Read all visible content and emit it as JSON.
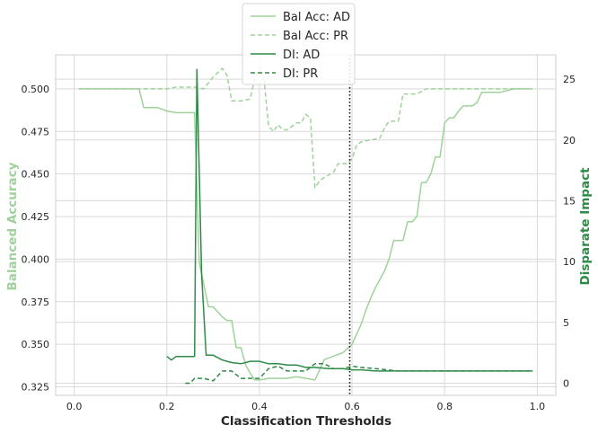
{
  "chart_data": {
    "type": "line",
    "xlabel": "Classification Thresholds",
    "ylabel_left": "Balanced Accuracy",
    "ylabel_right": "Disparate Impact",
    "xlim": [
      -0.04,
      1.04
    ],
    "ylim_left": [
      0.32,
      0.52
    ],
    "ylim_right": [
      -1.0,
      27.0
    ],
    "xticks": [
      0.0,
      0.2,
      0.4,
      0.6,
      0.8,
      1.0
    ],
    "xtick_labels": [
      "0.0",
      "0.2",
      "0.4",
      "0.6",
      "0.8",
      "1.0"
    ],
    "yticks_left": [
      0.325,
      0.35,
      0.375,
      0.4,
      0.425,
      0.45,
      0.475,
      0.5
    ],
    "ytick_labels_left": [
      "0.325",
      "0.350",
      "0.375",
      "0.400",
      "0.425",
      "0.450",
      "0.475",
      "0.500"
    ],
    "yticks_right": [
      0,
      5,
      10,
      15,
      20,
      25
    ],
    "ytick_labels_right": [
      "0",
      "5",
      "10",
      "15",
      "20",
      "25"
    ],
    "grid": true,
    "legend_position": "top-center",
    "vline": {
      "x": 0.595,
      "style": "dotted",
      "color": "#222222"
    },
    "colors": {
      "light_green": "#9fd29a",
      "dark_green": "#2e8b47",
      "left_label": "#9fd29a",
      "right_label": "#2e8b47"
    },
    "series": [
      {
        "name": "Bal Acc: AD",
        "axis": "left",
        "style": "solid",
        "color": "#9fd29a",
        "x": [
          0.01,
          0.14,
          0.15,
          0.18,
          0.2,
          0.22,
          0.26,
          0.27,
          0.28,
          0.29,
          0.3,
          0.31,
          0.32,
          0.33,
          0.34,
          0.35,
          0.36,
          0.37,
          0.38,
          0.39,
          0.4,
          0.42,
          0.44,
          0.46,
          0.48,
          0.5,
          0.52,
          0.54,
          0.56,
          0.58,
          0.6,
          0.61,
          0.62,
          0.63,
          0.64,
          0.65,
          0.66,
          0.67,
          0.68,
          0.69,
          0.7,
          0.71,
          0.72,
          0.73,
          0.74,
          0.75,
          0.76,
          0.77,
          0.78,
          0.79,
          0.8,
          0.81,
          0.82,
          0.83,
          0.84,
          0.85,
          0.86,
          0.87,
          0.88,
          0.9,
          0.92,
          0.95,
          0.99
        ],
        "y": [
          0.5,
          0.5,
          0.489,
          0.489,
          0.487,
          0.486,
          0.486,
          0.398,
          0.385,
          0.372,
          0.372,
          0.369,
          0.366,
          0.364,
          0.364,
          0.348,
          0.348,
          0.338,
          0.333,
          0.329,
          0.329,
          0.33,
          0.33,
          0.33,
          0.331,
          0.33,
          0.329,
          0.341,
          0.343,
          0.345,
          0.35,
          0.356,
          0.362,
          0.37,
          0.377,
          0.383,
          0.388,
          0.393,
          0.4,
          0.411,
          0.411,
          0.411,
          0.422,
          0.422,
          0.425,
          0.445,
          0.445,
          0.45,
          0.46,
          0.46,
          0.48,
          0.483,
          0.483,
          0.487,
          0.49,
          0.49,
          0.49,
          0.492,
          0.498,
          0.498,
          0.498,
          0.5,
          0.5
        ]
      },
      {
        "name": "Bal Acc: PR",
        "axis": "left",
        "style": "dashed",
        "color": "#9fd29a",
        "x": [
          0.01,
          0.2,
          0.22,
          0.24,
          0.26,
          0.28,
          0.3,
          0.32,
          0.33,
          0.34,
          0.36,
          0.38,
          0.39,
          0.4,
          0.41,
          0.42,
          0.43,
          0.44,
          0.45,
          0.46,
          0.47,
          0.48,
          0.49,
          0.5,
          0.51,
          0.52,
          0.53,
          0.54,
          0.56,
          0.57,
          0.58,
          0.59,
          0.6,
          0.61,
          0.62,
          0.64,
          0.66,
          0.67,
          0.68,
          0.7,
          0.71,
          0.72,
          0.74,
          0.76,
          0.99
        ],
        "y": [
          0.5,
          0.5,
          0.501,
          0.501,
          0.501,
          0.5,
          0.507,
          0.512,
          0.508,
          0.493,
          0.493,
          0.494,
          0.506,
          0.513,
          0.505,
          0.478,
          0.475,
          0.479,
          0.476,
          0.476,
          0.478,
          0.48,
          0.48,
          0.485,
          0.483,
          0.442,
          0.446,
          0.448,
          0.451,
          0.456,
          0.456,
          0.456,
          0.459,
          0.467,
          0.469,
          0.47,
          0.471,
          0.477,
          0.481,
          0.481,
          0.497,
          0.497,
          0.497,
          0.5,
          0.5
        ]
      },
      {
        "name": "DI: AD",
        "axis": "right",
        "style": "solid",
        "color": "#2e8b47",
        "x": [
          0.2,
          0.21,
          0.22,
          0.25,
          0.26,
          0.265,
          0.275,
          0.285,
          0.3,
          0.32,
          0.34,
          0.36,
          0.38,
          0.4,
          0.42,
          0.44,
          0.46,
          0.48,
          0.5,
          0.52,
          0.55,
          0.58,
          0.6,
          0.62,
          0.65,
          0.7,
          0.75,
          0.8,
          0.85,
          0.9,
          0.99
        ],
        "y": [
          2.2,
          1.9,
          2.2,
          2.2,
          2.2,
          25.8,
          9.0,
          2.3,
          2.3,
          1.9,
          1.7,
          1.6,
          1.8,
          1.8,
          1.6,
          1.6,
          1.5,
          1.5,
          1.3,
          1.3,
          1.2,
          1.2,
          1.1,
          1.1,
          1.0,
          1.0,
          1.0,
          1.0,
          1.0,
          1.0,
          1.0
        ]
      },
      {
        "name": "DI: PR",
        "axis": "right",
        "style": "dashed",
        "color": "#2e8b47",
        "x": [
          0.24,
          0.25,
          0.26,
          0.28,
          0.3,
          0.32,
          0.34,
          0.36,
          0.38,
          0.4,
          0.42,
          0.44,
          0.46,
          0.48,
          0.5,
          0.52,
          0.54,
          0.56,
          0.58,
          0.6,
          0.62,
          0.65,
          0.7,
          0.75,
          0.8,
          0.85,
          0.9,
          0.99
        ],
        "y": [
          0.0,
          0.0,
          0.4,
          0.4,
          0.2,
          1.0,
          1.0,
          0.4,
          0.4,
          0.4,
          1.2,
          1.4,
          1.0,
          1.0,
          1.0,
          1.6,
          1.6,
          1.2,
          1.2,
          1.4,
          1.3,
          1.2,
          1.0,
          1.0,
          1.0,
          1.0,
          1.0,
          1.0
        ]
      }
    ]
  }
}
